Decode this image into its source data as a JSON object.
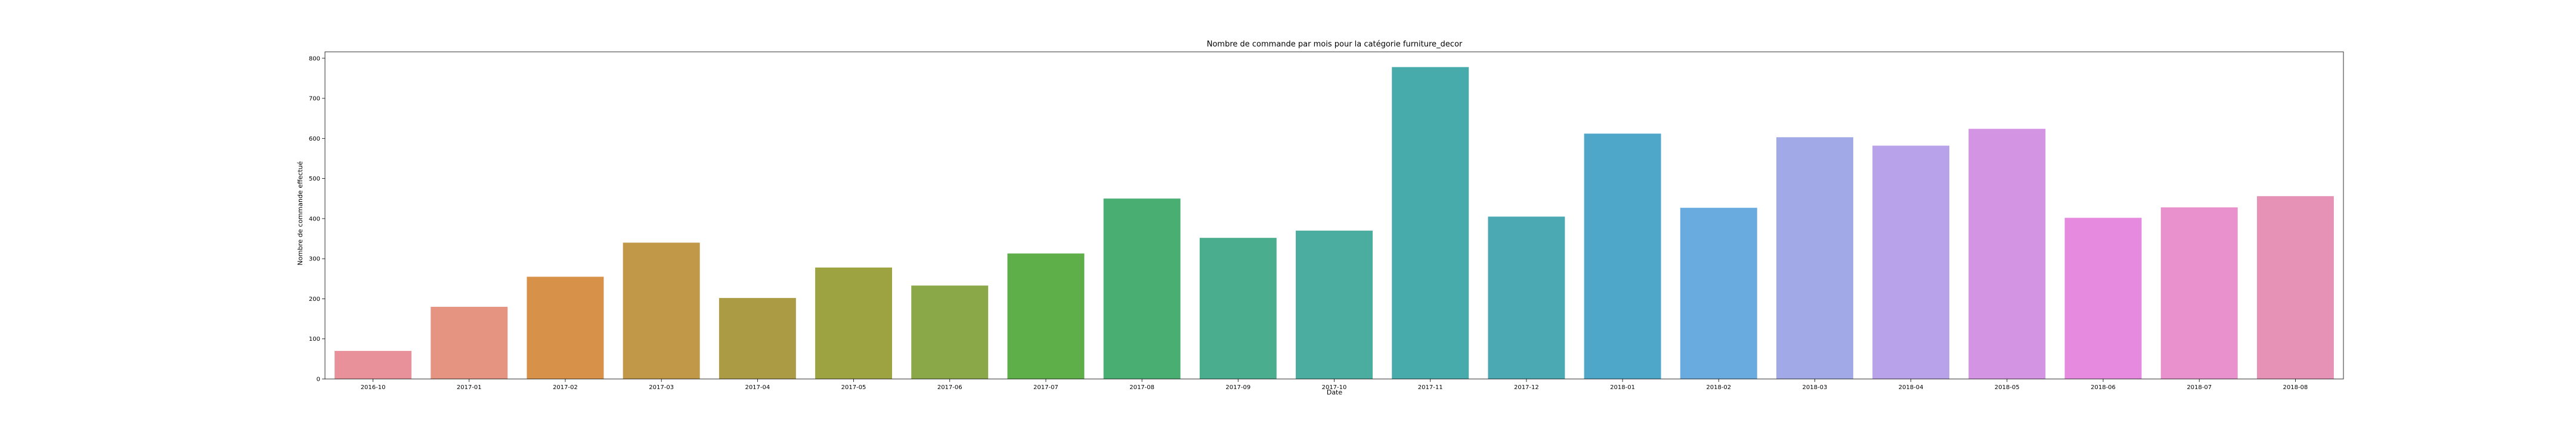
{
  "chart_data": {
    "type": "bar",
    "title": "Nombre de commande par mois pour la catégorie furniture_decor",
    "xlabel": "Date",
    "ylabel": "Nombre de commande effectué",
    "categories": [
      "2016-10",
      "2017-01",
      "2017-02",
      "2017-03",
      "2017-04",
      "2017-05",
      "2017-06",
      "2017-07",
      "2017-08",
      "2017-09",
      "2017-10",
      "2017-11",
      "2017-12",
      "2018-01",
      "2018-02",
      "2018-03",
      "2018-04",
      "2018-05",
      "2018-06",
      "2018-07",
      "2018-08"
    ],
    "values": [
      70,
      180,
      255,
      340,
      202,
      278,
      233,
      313,
      450,
      352,
      370,
      778,
      405,
      612,
      427,
      603,
      582,
      624,
      402,
      428,
      456
    ],
    "colors": [
      "#e9919b",
      "#e59482",
      "#d89149",
      "#c19848",
      "#ac9b45",
      "#9ea342",
      "#8aa847",
      "#5eaf4a",
      "#48ae71",
      "#4aad8e",
      "#4aad9f",
      "#47aaab",
      "#4aa9b3",
      "#4ea7c9",
      "#6aabdf",
      "#a1a9e7",
      "#b8a2ea",
      "#d494e4",
      "#e68ae0",
      "#e891cc",
      "#e691b6"
    ],
    "yticks": [
      0,
      100,
      200,
      300,
      400,
      500,
      600,
      700,
      800
    ],
    "ylim": [
      0,
      816
    ],
    "grid": false,
    "legend": "none"
  }
}
